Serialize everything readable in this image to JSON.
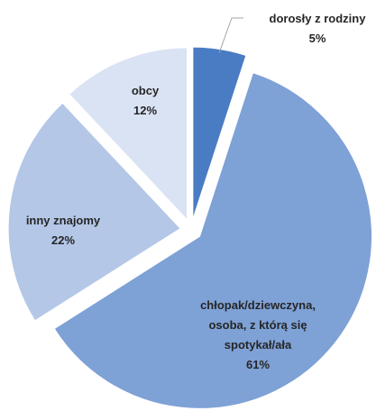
{
  "chart_data": {
    "type": "pie",
    "categories": [
      "dorosły z rodziny",
      "chłopak/dziewczyna, osoba, z którą się spotykał/ała",
      "inny znajomy",
      "obcy"
    ],
    "values": [
      5,
      61,
      22,
      12
    ],
    "value_labels": [
      "5%",
      "61%",
      "22%",
      "12%"
    ],
    "colors": [
      "#4a7cc4",
      "#7ea1d6",
      "#b4c7e7",
      "#dae3f3"
    ]
  }
}
